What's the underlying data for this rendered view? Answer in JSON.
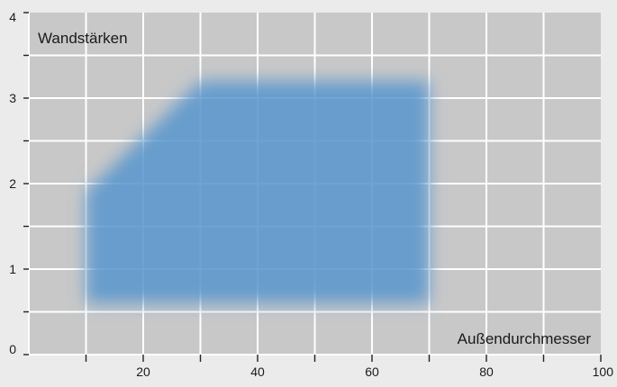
{
  "chart_data": {
    "type": "area",
    "xlabel": "Außendurchmesser",
    "ylabel": "Wandstärken",
    "xlim": [
      0,
      100
    ],
    "ylim": [
      0,
      4
    ],
    "x_ticks": [
      20,
      40,
      60,
      80,
      100
    ],
    "y_ticks": [
      0,
      1,
      2,
      3,
      4
    ],
    "x_minor_ticks": [
      10,
      30,
      50,
      70,
      90
    ],
    "y_minor_ticks": [
      0.5,
      1.5,
      2.5,
      3.5
    ],
    "grid": true,
    "region": {
      "points": [
        {
          "x": 10,
          "y": 0.6
        },
        {
          "x": 10,
          "y": 1.9
        },
        {
          "x": 30,
          "y": 3.2
        },
        {
          "x": 70,
          "y": 3.2
        },
        {
          "x": 70,
          "y": 0.6
        }
      ]
    },
    "colors": {
      "plot_background": "#c8c8c8",
      "page_background": "#ebebeb",
      "grid": "#ffffff",
      "region_fill": "#5a96cd"
    }
  }
}
